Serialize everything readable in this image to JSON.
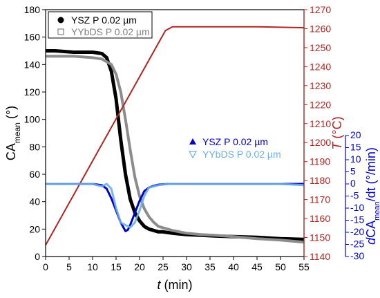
{
  "chart_data": {
    "type": "line",
    "x_axis": {
      "label": "t",
      "unit": " (min)",
      "range": [
        0,
        55
      ],
      "ticks": [
        0,
        5,
        10,
        15,
        20,
        25,
        30,
        35,
        40,
        45,
        50,
        55
      ]
    },
    "y_left": {
      "label": "CA",
      "sub": "mean",
      "unit": " (°)",
      "range": [
        0,
        180
      ],
      "ticks": [
        0,
        20,
        40,
        60,
        80,
        100,
        120,
        140,
        160,
        180
      ],
      "color": "#000000"
    },
    "y_right_T": {
      "label": "T",
      "unit": " (°C)",
      "range": [
        1140,
        1270
      ],
      "ticks": [
        1140,
        1150,
        1160,
        1170,
        1180,
        1190,
        1200,
        1210,
        1220,
        1230,
        1240,
        1250,
        1260,
        1270
      ],
      "color": "#b22222"
    },
    "y_right_rate": {
      "label_prefix": "d",
      "label_main": "CA",
      "label_sub": "mean",
      "label_suffix": "/dt (°/min)",
      "range": [
        -30,
        20
      ],
      "ticks": [
        -30,
        -25,
        -20,
        -15,
        -10,
        -5,
        0,
        5,
        10,
        15,
        20
      ],
      "color": "#0000cc"
    },
    "legend_top": {
      "position": "top-left",
      "entries": [
        {
          "name": "YSZ P 0.02 µm",
          "marker": "circle-filled",
          "color": "#000000"
        },
        {
          "name": "YYbDS P 0.02 µm",
          "marker": "square-open",
          "color": "#808080"
        }
      ]
    },
    "legend_rate": {
      "position": "center-right",
      "entries": [
        {
          "name": "YSZ P 0.02 µm",
          "marker": "triangle-filled",
          "color": "#0000cc"
        },
        {
          "name": "YYbDS P 0.02 µm",
          "marker": "triangle-down-open",
          "color": "#6aaee8"
        }
      ]
    },
    "series": [
      {
        "name": "YSZ P 0.02 µm",
        "axis": "left",
        "color": "#000000",
        "x": [
          0,
          2,
          4,
          6,
          8,
          10,
          12,
          13,
          14,
          15,
          16,
          17,
          18,
          19,
          20,
          21,
          22,
          23,
          24,
          25,
          27,
          30,
          33,
          36,
          40,
          45,
          50,
          55
        ],
        "y": [
          150,
          150,
          149.5,
          149,
          149,
          149,
          148,
          145,
          135,
          115,
          85,
          60,
          42,
          32,
          26,
          22,
          20,
          19,
          18,
          18,
          17,
          16,
          15.5,
          15,
          14.5,
          14,
          13,
          12.5
        ]
      },
      {
        "name": "YYbDS P 0.02 µm",
        "axis": "left",
        "color": "#8c8c8c",
        "x": [
          0,
          2,
          4,
          6,
          8,
          10,
          12,
          14,
          15,
          16,
          17,
          18,
          19,
          20,
          21,
          22,
          23,
          24,
          25,
          27,
          30,
          33,
          36,
          40,
          45,
          50,
          55
        ],
        "y": [
          146,
          146,
          146,
          146,
          145.5,
          145,
          144,
          140,
          133,
          120,
          100,
          78,
          58,
          44,
          35,
          29,
          25,
          22,
          21,
          19,
          17,
          16,
          15.5,
          14.5,
          13,
          12,
          10.5
        ]
      },
      {
        "name": "T",
        "axis": "right_T",
        "color": "#b22222",
        "x": [
          0,
          25.5,
          27,
          29,
          35,
          45,
          55
        ],
        "y": [
          1146,
          1259,
          1261,
          1261,
          1261,
          1261,
          1260.5
        ]
      },
      {
        "name": "YSZ P 0.02 µm",
        "axis": "right_rate",
        "color": "#0000cc",
        "x": [
          0,
          5,
          10,
          12,
          13,
          14,
          15,
          16,
          17,
          17.5,
          18,
          19,
          20,
          21,
          22,
          23,
          24,
          26,
          30,
          35,
          40,
          45,
          50,
          55
        ],
        "y": [
          0,
          0,
          0,
          -0.5,
          -2,
          -6,
          -11,
          -16,
          -19.5,
          -19,
          -17,
          -12,
          -7,
          -3,
          -1.5,
          -0.8,
          -0.3,
          0,
          0,
          0,
          0,
          0,
          0,
          0
        ]
      },
      {
        "name": "YYbDS P 0.02 µm",
        "axis": "right_rate",
        "color": "#6aaee8",
        "x": [
          0,
          5,
          10,
          11,
          12,
          13,
          14,
          15,
          16,
          17,
          18,
          19,
          20,
          21,
          22,
          24,
          26,
          30,
          35,
          40,
          45,
          50,
          55
        ],
        "y": [
          0,
          0,
          0,
          -0.5,
          -1,
          0,
          -2,
          -10,
          -16,
          -17,
          -18,
          -16,
          -11,
          -5,
          -1.5,
          -0.5,
          0,
          0,
          0,
          0,
          0,
          0,
          -0.5
        ]
      }
    ]
  }
}
